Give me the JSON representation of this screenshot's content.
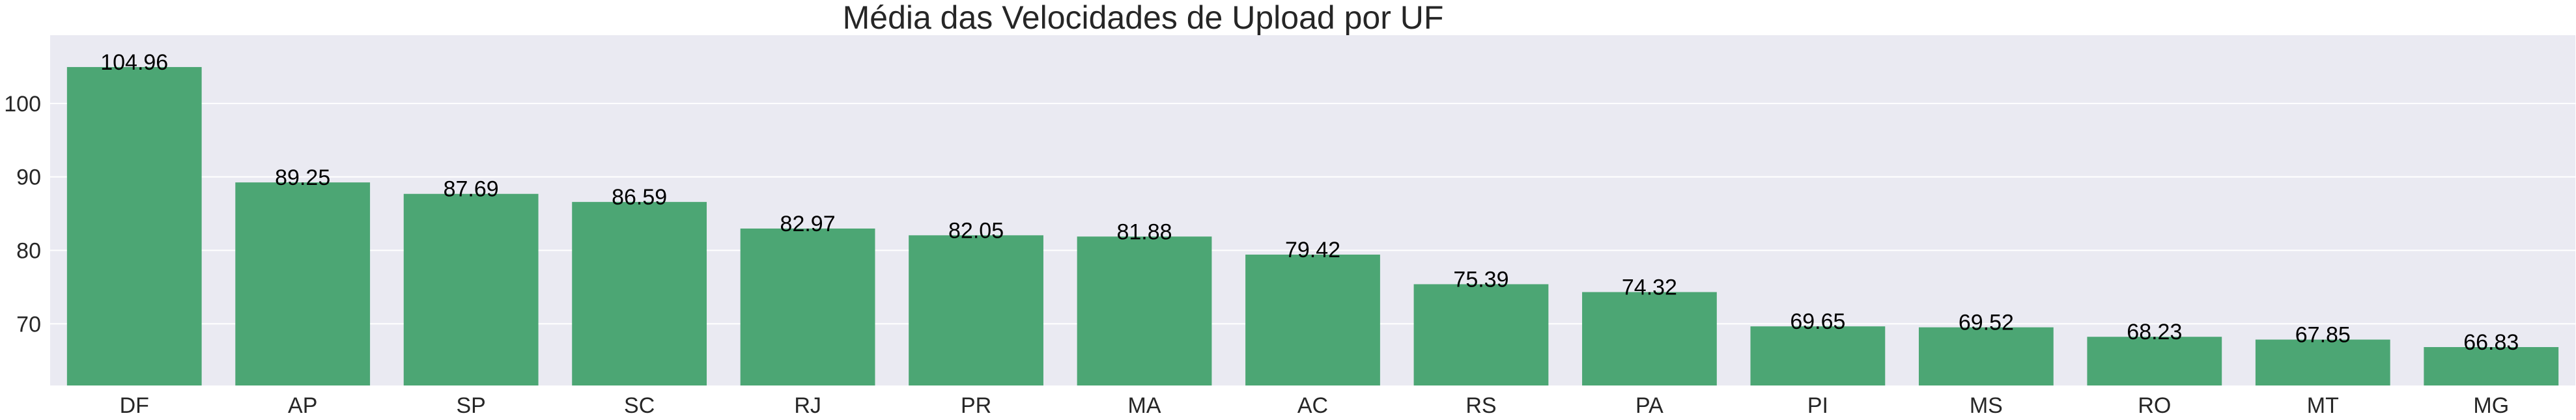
{
  "chart_data": {
    "type": "bar",
    "title": "Média das Velocidades de Upload por UF",
    "xlabel": "",
    "ylabel": "",
    "categories": [
      "DF",
      "AP",
      "SP",
      "SC",
      "RJ",
      "PR",
      "MA",
      "AC",
      "RS",
      "PA",
      "PI",
      "MS",
      "RO",
      "MT",
      "MG"
    ],
    "values": [
      104.96,
      89.25,
      87.69,
      86.59,
      82.97,
      82.05,
      81.88,
      79.42,
      75.39,
      74.32,
      69.65,
      69.52,
      68.23,
      67.85,
      66.83
    ],
    "value_labels": [
      "104.96",
      "89.25",
      "87.69",
      "86.59",
      "82.97",
      "82.05",
      "81.88",
      "79.42",
      "75.39",
      "74.32",
      "69.65",
      "69.52",
      "68.23",
      "67.85",
      "66.83"
    ],
    "yticks": [
      70,
      80,
      90,
      100
    ],
    "ytick_labels": [
      "70",
      "80",
      "90",
      "100"
    ],
    "ylim": [
      61.6,
      109.3
    ],
    "grid": true,
    "colors": {
      "bar": "#4ca674",
      "plot_background": "#eaeaf2",
      "grid": "#ffffff",
      "text": "#000000",
      "tick_text": "#262626"
    }
  }
}
